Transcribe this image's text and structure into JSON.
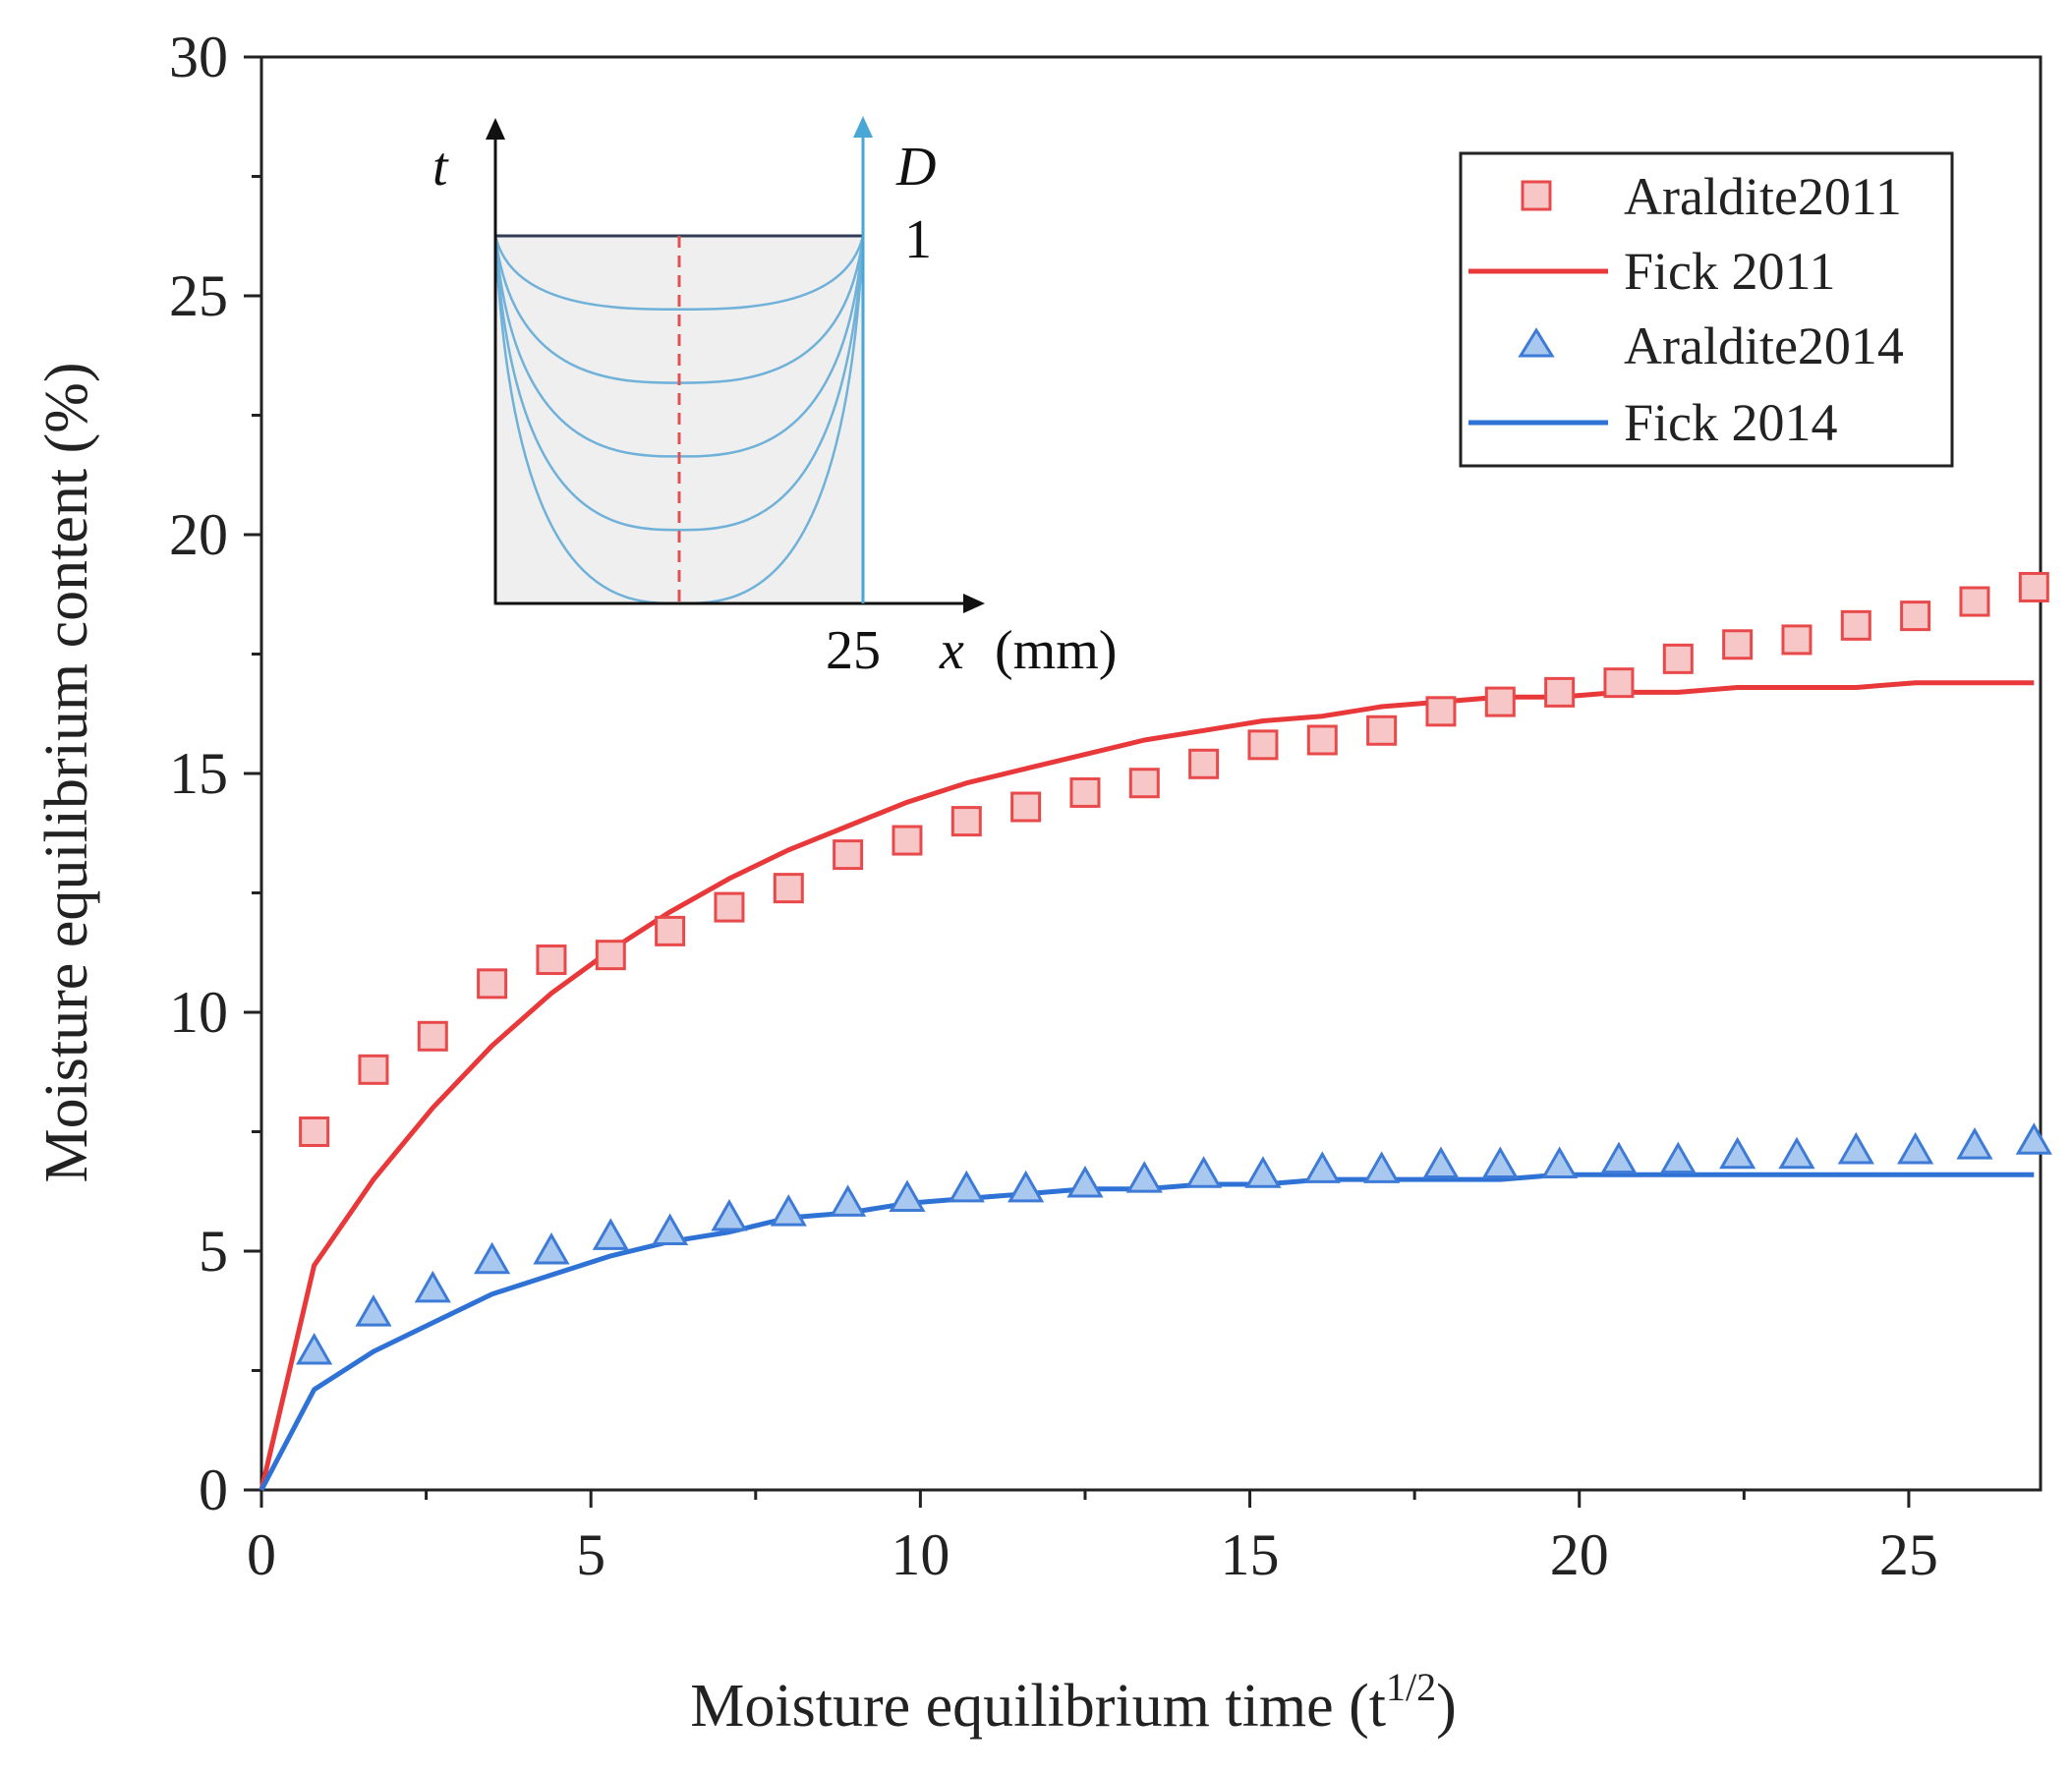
{
  "chart_data": {
    "type": "scatter",
    "title": "",
    "xlabel": "Moisture equilibrium time (t",
    "xlabel_sup": "1/2",
    "xlabel_close": ")",
    "ylabel": "Moisture equilibrium content (%)",
    "xlim": [
      0,
      27
    ],
    "ylim": [
      0,
      30
    ],
    "xticks": [
      0,
      5,
      10,
      15,
      20,
      25
    ],
    "yticks": [
      0,
      5,
      10,
      15,
      20,
      25,
      30
    ],
    "grid": false,
    "legend_position": "top-right",
    "series": [
      {
        "name": "Araldite2011",
        "kind": "markers",
        "marker": "square",
        "color": "#e8494a",
        "fill": "#f7c6c6",
        "x": [
          0.8,
          1.7,
          2.6,
          3.5,
          4.4,
          5.3,
          6.2,
          7.1,
          8.0,
          8.9,
          9.8,
          10.7,
          11.6,
          12.5,
          13.4,
          14.3,
          15.2,
          16.1,
          17.0,
          17.9,
          18.8,
          19.7,
          20.6,
          21.5,
          22.4,
          23.3,
          24.2,
          25.1,
          26.0,
          26.9
        ],
        "y": [
          7.5,
          8.8,
          9.5,
          10.6,
          11.1,
          11.2,
          11.7,
          12.2,
          12.6,
          13.3,
          13.6,
          14.0,
          14.3,
          14.6,
          14.8,
          15.2,
          15.6,
          15.7,
          15.9,
          16.3,
          16.5,
          16.7,
          16.9,
          17.4,
          17.7,
          17.8,
          18.1,
          18.3,
          18.6,
          18.9
        ]
      },
      {
        "name": "Fick 2011",
        "kind": "line",
        "color": "#e8383a",
        "x": [
          0,
          0.8,
          1.7,
          2.6,
          3.5,
          4.4,
          5.3,
          6.2,
          7.1,
          8.0,
          8.9,
          9.8,
          10.7,
          11.6,
          12.5,
          13.4,
          14.3,
          15.2,
          16.1,
          17.0,
          17.9,
          18.8,
          19.7,
          20.6,
          21.5,
          22.4,
          23.3,
          24.2,
          25.1,
          26.0,
          26.9
        ],
        "y": [
          0,
          4.7,
          6.5,
          8.0,
          9.3,
          10.4,
          11.3,
          12.1,
          12.8,
          13.4,
          13.9,
          14.4,
          14.8,
          15.1,
          15.4,
          15.7,
          15.9,
          16.1,
          16.2,
          16.4,
          16.5,
          16.6,
          16.6,
          16.7,
          16.7,
          16.8,
          16.8,
          16.8,
          16.9,
          16.9,
          16.9
        ]
      },
      {
        "name": "Araldite2014",
        "kind": "markers",
        "marker": "triangle",
        "color": "#3d7bd6",
        "fill": "#a9c8f0",
        "x": [
          0.8,
          1.7,
          2.6,
          3.5,
          4.4,
          5.3,
          6.2,
          7.1,
          8.0,
          8.9,
          9.8,
          10.7,
          11.6,
          12.5,
          13.4,
          14.3,
          15.2,
          16.1,
          17.0,
          17.9,
          18.8,
          19.7,
          20.6,
          21.5,
          22.4,
          23.3,
          24.2,
          25.1,
          26.0,
          26.9
        ],
        "y": [
          2.9,
          3.7,
          4.2,
          4.8,
          5.0,
          5.3,
          5.4,
          5.7,
          5.8,
          6.0,
          6.1,
          6.3,
          6.3,
          6.4,
          6.5,
          6.6,
          6.6,
          6.7,
          6.7,
          6.8,
          6.8,
          6.8,
          6.9,
          6.9,
          7.0,
          7.0,
          7.1,
          7.1,
          7.2,
          7.3
        ]
      },
      {
        "name": "Fick 2014",
        "kind": "line",
        "color": "#2f72d6",
        "x": [
          0,
          0.8,
          1.7,
          2.6,
          3.5,
          4.4,
          5.3,
          6.2,
          7.1,
          8.0,
          8.9,
          9.8,
          10.7,
          11.6,
          12.5,
          13.4,
          14.3,
          15.2,
          16.1,
          17.0,
          17.9,
          18.8,
          19.7,
          20.6,
          21.5,
          22.4,
          23.3,
          24.2,
          25.1,
          26.0,
          26.9
        ],
        "y": [
          0,
          2.1,
          2.9,
          3.5,
          4.1,
          4.5,
          4.9,
          5.2,
          5.4,
          5.7,
          5.8,
          6.0,
          6.1,
          6.2,
          6.3,
          6.3,
          6.4,
          6.4,
          6.5,
          6.5,
          6.5,
          6.5,
          6.6,
          6.6,
          6.6,
          6.6,
          6.6,
          6.6,
          6.6,
          6.6,
          6.6
        ]
      }
    ],
    "inset": {
      "description": "moisture diffusion profile",
      "t_label": "t",
      "d_label": "D",
      "d_value": "1",
      "x_end_label": "25",
      "x_label": "x",
      "x_unit": "(mm)",
      "profiles": 5,
      "curve_color": "#6fb1d9",
      "center_line_color": "#e05252",
      "fill_color": "#efefef"
    }
  }
}
